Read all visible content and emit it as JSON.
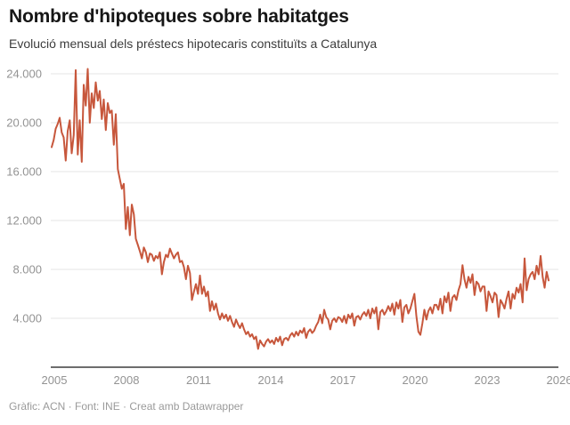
{
  "header": {
    "title": "Nombre d'hipoteques sobre habitatges",
    "subtitle": "Evolució mensual dels préstecs hipotecaris constituïts a Catalunya"
  },
  "footer": {
    "credit": "Gràfic: ACN · Font: INE · Creat amb Datawrapper"
  },
  "chart_data": {
    "type": "line",
    "title": "Nombre d'hipoteques sobre habitatges",
    "subtitle": "Evolució mensual dels préstecs hipotecaris constituïts a Catalunya",
    "xlabel": "",
    "ylabel": "",
    "xlim": [
      2005,
      2026
    ],
    "ylim": [
      0,
      24000
    ],
    "grid": "horizontal",
    "legend": "none",
    "x_tick_labels": [
      "2005",
      "2008",
      "2011",
      "2014",
      "2017",
      "2020",
      "2023",
      "2026"
    ],
    "x_tick_years": [
      2005,
      2008,
      2011,
      2014,
      2017,
      2020,
      2023,
      2026
    ],
    "y_tick_values": [
      4000,
      8000,
      12000,
      16000,
      20000,
      24000
    ],
    "y_tick_labels": [
      "4.000",
      "8.000",
      "12.000",
      "16.000",
      "20.000",
      "24.000"
    ],
    "colors": {
      "line": "#c7573c",
      "gridline": "#e4e4e4",
      "axis": "#3d3d3d",
      "tick_text": "#939393"
    },
    "series": [
      {
        "start": "2005-01",
        "frequency": "monthly",
        "values": [
          18000,
          18600,
          19500,
          19900,
          20400,
          19200,
          18800,
          16900,
          19300,
          20200,
          17500,
          19000,
          24300,
          17400,
          20200,
          16800,
          23100,
          21400,
          24400,
          20000,
          22400,
          21200,
          23300,
          21800,
          22600,
          20300,
          21900,
          19400,
          21600,
          20800,
          21000,
          18200,
          20700,
          16200,
          15400,
          14600,
          15000,
          11300,
          13100,
          10800,
          13300,
          12500,
          10500,
          10000,
          9500,
          8900,
          9800,
          9400,
          8600,
          9300,
          9200,
          8700,
          9100,
          8900,
          9400,
          7600,
          8600,
          9200,
          9000,
          9700,
          9300,
          8900,
          9200,
          9400,
          8600,
          8700,
          8200,
          7200,
          8300,
          7700,
          5500,
          6200,
          6800,
          6000,
          7500,
          6000,
          6600,
          5800,
          6200,
          4600,
          5400,
          4700,
          5200,
          4400,
          3900,
          4400,
          4000,
          4300,
          3800,
          4200,
          3700,
          3300,
          3900,
          3500,
          3200,
          3600,
          3100,
          2700,
          2900,
          2500,
          2700,
          2300,
          2500,
          1500,
          2200,
          1900,
          1700,
          2100,
          2300,
          2000,
          2200,
          1900,
          2400,
          2100,
          2500,
          1800,
          2300,
          2400,
          2200,
          2600,
          2800,
          2500,
          2900,
          2600,
          3000,
          2800,
          3200,
          2400,
          2900,
          3100,
          2800,
          3000,
          3400,
          3700,
          4300,
          3600,
          4700,
          4100,
          3900,
          3100,
          3800,
          4000,
          3700,
          4100,
          4000,
          3700,
          4200,
          3600,
          4300,
          4000,
          4400,
          3400,
          4100,
          4200,
          3900,
          4300,
          4500,
          4200,
          4700,
          4000,
          4800,
          4400,
          4900,
          3100,
          4500,
          4700,
          4300,
          4600,
          5000,
          4600,
          5200,
          4300,
          5300,
          4800,
          5500,
          3700,
          4900,
          5100,
          4400,
          4800,
          5400,
          6000,
          4200,
          2900,
          2650,
          3600,
          4700,
          3900,
          4600,
          4900,
          4400,
          5100,
          5100,
          4700,
          5600,
          4400,
          5800,
          5300,
          6100,
          4600,
          5700,
          5900,
          5500,
          6300,
          6800,
          8350,
          7200,
          6500,
          7400,
          6900,
          7600,
          5900,
          7000,
          6800,
          6200,
          6600,
          6600,
          4600,
          6200,
          5800,
          5300,
          6100,
          5900,
          4100,
          5500,
          5200,
          4800,
          5600,
          6200,
          4800,
          6000,
          5600,
          6500,
          6100,
          6800,
          5300,
          8900,
          6300,
          7200,
          7600,
          7800,
          7200,
          8300,
          7600,
          9100,
          7400,
          6500,
          7800,
          7100
        ]
      }
    ]
  }
}
